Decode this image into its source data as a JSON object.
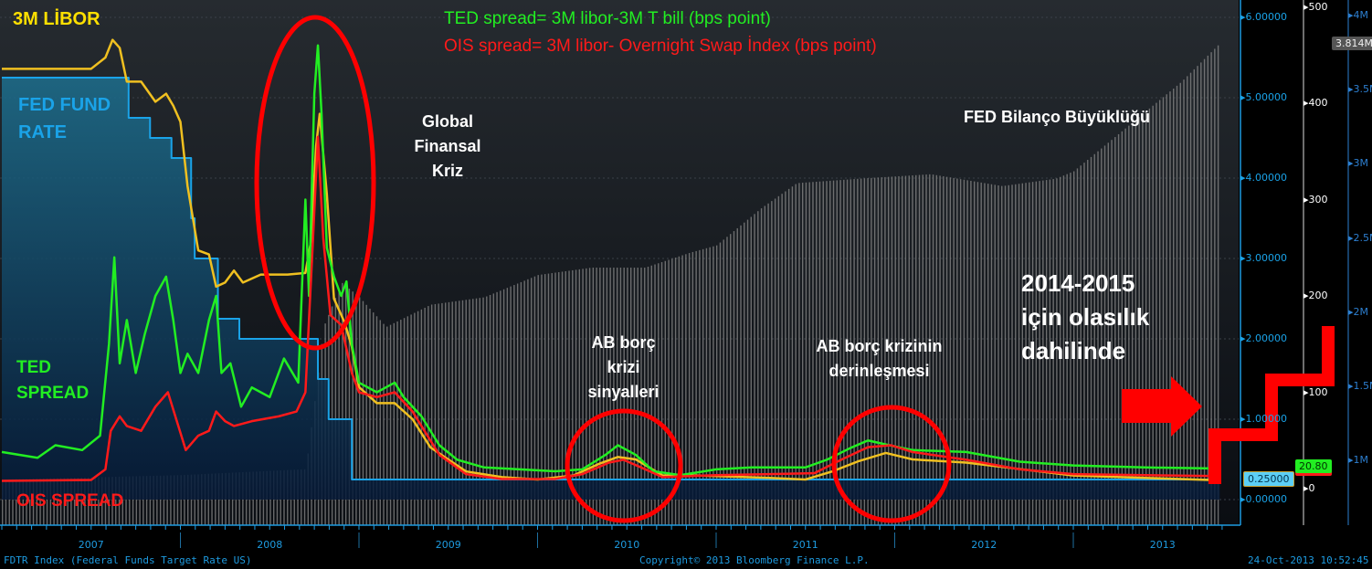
{
  "chart_data": {
    "type": "line",
    "title_lines": [
      "TED spread= 3M libor-3M T bill (bps point)",
      "OIS spread= 3M libor- Overnight Swap İndex (bps point)"
    ],
    "x_axis": {
      "type": "time",
      "range": [
        2007.0,
        2013.85
      ],
      "tick_labels": [
        "2007",
        "2008",
        "2009",
        "2010",
        "2011",
        "2012",
        "2013"
      ]
    },
    "y_axes": [
      {
        "name": "rate_pct",
        "side": "right",
        "range": [
          0,
          6.2
        ],
        "tick_labels": [
          "6.00000",
          "5.00000",
          "4.00000",
          "3.00000",
          "2.00000",
          "1.00000",
          "0.00000"
        ],
        "color": "#1aa3e8"
      },
      {
        "name": "spread_bps",
        "side": "right",
        "range": [
          -10,
          500
        ],
        "tick_labels": [
          "500",
          "400",
          "300",
          "200",
          "100",
          "0"
        ],
        "color": "#ffffff"
      },
      {
        "name": "balance_usd",
        "side": "right",
        "range": [
          0.7,
          4.05
        ],
        "tick_labels": [
          "4M",
          "3.5M",
          "3M",
          "2.5M",
          "2M",
          "1.5M",
          "1M"
        ],
        "color": "#2d7fd0"
      }
    ],
    "grid": true,
    "series": [
      {
        "name": "FED FUND RATE",
        "axis": "rate_pct",
        "color": "#1aa3e8",
        "step": true,
        "points": [
          [
            2007.0,
            5.25
          ],
          [
            2007.71,
            4.75
          ],
          [
            2007.83,
            4.5
          ],
          [
            2007.95,
            4.25
          ],
          [
            2008.06,
            3.5
          ],
          [
            2008.08,
            3.0
          ],
          [
            2008.21,
            2.25
          ],
          [
            2008.33,
            2.0
          ],
          [
            2008.77,
            1.5
          ],
          [
            2008.83,
            1.0
          ],
          [
            2008.96,
            0.25
          ],
          [
            2013.82,
            0.25
          ]
        ]
      },
      {
        "name": "3M LİBOR",
        "axis": "rate_pct",
        "color": "#f0c020",
        "points": [
          [
            2007.0,
            5.36
          ],
          [
            2007.5,
            5.36
          ],
          [
            2007.58,
            5.5
          ],
          [
            2007.62,
            5.72
          ],
          [
            2007.66,
            5.62
          ],
          [
            2007.7,
            5.2
          ],
          [
            2007.78,
            5.2
          ],
          [
            2007.86,
            4.95
          ],
          [
            2007.92,
            5.05
          ],
          [
            2007.96,
            4.9
          ],
          [
            2008.0,
            4.7
          ],
          [
            2008.04,
            3.9
          ],
          [
            2008.1,
            3.1
          ],
          [
            2008.16,
            3.05
          ],
          [
            2008.2,
            2.65
          ],
          [
            2008.25,
            2.7
          ],
          [
            2008.3,
            2.85
          ],
          [
            2008.35,
            2.7
          ],
          [
            2008.45,
            2.8
          ],
          [
            2008.6,
            2.8
          ],
          [
            2008.7,
            2.82
          ],
          [
            2008.73,
            3.2
          ],
          [
            2008.76,
            4.4
          ],
          [
            2008.78,
            4.8
          ],
          [
            2008.82,
            3.8
          ],
          [
            2008.86,
            2.5
          ],
          [
            2008.92,
            2.2
          ],
          [
            2008.96,
            1.9
          ],
          [
            2009.0,
            1.4
          ],
          [
            2009.1,
            1.2
          ],
          [
            2009.2,
            1.2
          ],
          [
            2009.3,
            1.0
          ],
          [
            2009.4,
            0.65
          ],
          [
            2009.5,
            0.5
          ],
          [
            2009.6,
            0.35
          ],
          [
            2009.8,
            0.28
          ],
          [
            2010.0,
            0.25
          ],
          [
            2010.2,
            0.3
          ],
          [
            2010.35,
            0.45
          ],
          [
            2010.45,
            0.53
          ],
          [
            2010.55,
            0.5
          ],
          [
            2010.7,
            0.3
          ],
          [
            2010.9,
            0.3
          ],
          [
            2011.3,
            0.27
          ],
          [
            2011.5,
            0.25
          ],
          [
            2011.65,
            0.35
          ],
          [
            2011.8,
            0.48
          ],
          [
            2011.95,
            0.58
          ],
          [
            2012.1,
            0.5
          ],
          [
            2012.4,
            0.46
          ],
          [
            2012.7,
            0.38
          ],
          [
            2013.0,
            0.3
          ],
          [
            2013.4,
            0.27
          ],
          [
            2013.82,
            0.24
          ]
        ]
      },
      {
        "name": "TED SPREAD",
        "axis": "spread_bps",
        "color": "#22ee22",
        "points": [
          [
            2007.0,
            38
          ],
          [
            2007.2,
            32
          ],
          [
            2007.3,
            45
          ],
          [
            2007.45,
            40
          ],
          [
            2007.55,
            55
          ],
          [
            2007.6,
            150
          ],
          [
            2007.63,
            240
          ],
          [
            2007.66,
            130
          ],
          [
            2007.7,
            175
          ],
          [
            2007.75,
            120
          ],
          [
            2007.8,
            160
          ],
          [
            2007.86,
            200
          ],
          [
            2007.92,
            220
          ],
          [
            2007.96,
            175
          ],
          [
            2008.0,
            120
          ],
          [
            2008.04,
            140
          ],
          [
            2008.1,
            120
          ],
          [
            2008.16,
            175
          ],
          [
            2008.2,
            200
          ],
          [
            2008.23,
            120
          ],
          [
            2008.28,
            130
          ],
          [
            2008.34,
            85
          ],
          [
            2008.4,
            105
          ],
          [
            2008.5,
            95
          ],
          [
            2008.58,
            135
          ],
          [
            2008.66,
            110
          ],
          [
            2008.7,
            300
          ],
          [
            2008.72,
            200
          ],
          [
            2008.75,
            410
          ],
          [
            2008.77,
            460
          ],
          [
            2008.79,
            390
          ],
          [
            2008.82,
            250
          ],
          [
            2008.86,
            220
          ],
          [
            2008.9,
            200
          ],
          [
            2008.93,
            215
          ],
          [
            2008.96,
            150
          ],
          [
            2009.0,
            110
          ],
          [
            2009.1,
            100
          ],
          [
            2009.2,
            110
          ],
          [
            2009.25,
            95
          ],
          [
            2009.35,
            75
          ],
          [
            2009.45,
            45
          ],
          [
            2009.55,
            30
          ],
          [
            2009.7,
            22
          ],
          [
            2009.9,
            20
          ],
          [
            2010.1,
            18
          ],
          [
            2010.25,
            20
          ],
          [
            2010.38,
            35
          ],
          [
            2010.45,
            45
          ],
          [
            2010.55,
            35
          ],
          [
            2010.65,
            18
          ],
          [
            2010.8,
            14
          ],
          [
            2011.0,
            20
          ],
          [
            2011.2,
            22
          ],
          [
            2011.5,
            22
          ],
          [
            2011.62,
            30
          ],
          [
            2011.75,
            42
          ],
          [
            2011.85,
            50
          ],
          [
            2011.97,
            45
          ],
          [
            2012.1,
            40
          ],
          [
            2012.4,
            38
          ],
          [
            2012.7,
            28
          ],
          [
            2013.0,
            24
          ],
          [
            2013.4,
            22
          ],
          [
            2013.82,
            20.8
          ]
        ]
      },
      {
        "name": "OIS SPREAD",
        "axis": "spread_bps",
        "color": "#ff1a1a",
        "points": [
          [
            2007.0,
            8
          ],
          [
            2007.5,
            9
          ],
          [
            2007.58,
            20
          ],
          [
            2007.61,
            60
          ],
          [
            2007.66,
            75
          ],
          [
            2007.7,
            65
          ],
          [
            2007.78,
            60
          ],
          [
            2007.86,
            85
          ],
          [
            2007.93,
            100
          ],
          [
            2007.98,
            70
          ],
          [
            2008.03,
            40
          ],
          [
            2008.1,
            55
          ],
          [
            2008.16,
            60
          ],
          [
            2008.2,
            80
          ],
          [
            2008.25,
            70
          ],
          [
            2008.3,
            65
          ],
          [
            2008.4,
            70
          ],
          [
            2008.55,
            75
          ],
          [
            2008.65,
            80
          ],
          [
            2008.7,
            100
          ],
          [
            2008.74,
            250
          ],
          [
            2008.77,
            365
          ],
          [
            2008.8,
            260
          ],
          [
            2008.84,
            180
          ],
          [
            2008.9,
            170
          ],
          [
            2008.96,
            120
          ],
          [
            2009.0,
            100
          ],
          [
            2009.1,
            95
          ],
          [
            2009.2,
            100
          ],
          [
            2009.3,
            80
          ],
          [
            2009.45,
            35
          ],
          [
            2009.6,
            15
          ],
          [
            2009.8,
            10
          ],
          [
            2010.1,
            10
          ],
          [
            2010.25,
            15
          ],
          [
            2010.4,
            27
          ],
          [
            2010.48,
            30
          ],
          [
            2010.58,
            22
          ],
          [
            2010.7,
            12
          ],
          [
            2011.0,
            14
          ],
          [
            2011.3,
            15
          ],
          [
            2011.55,
            16
          ],
          [
            2011.7,
            30
          ],
          [
            2011.85,
            43
          ],
          [
            2011.98,
            45
          ],
          [
            2012.1,
            38
          ],
          [
            2012.4,
            30
          ],
          [
            2012.7,
            20
          ],
          [
            2013.0,
            15
          ],
          [
            2013.4,
            14
          ],
          [
            2013.82,
            13
          ]
        ]
      },
      {
        "name": "FED Bilanço Büyüklüğü",
        "axis": "balance_usd",
        "color": "#8a8a8a",
        "type": "bar",
        "points": [
          [
            2007.0,
            0.87
          ],
          [
            2008.0,
            0.9
          ],
          [
            2008.7,
            0.94
          ],
          [
            2008.75,
            1.4
          ],
          [
            2008.8,
            1.9
          ],
          [
            2008.9,
            2.2
          ],
          [
            2009.0,
            2.1
          ],
          [
            2009.15,
            1.9
          ],
          [
            2009.4,
            2.05
          ],
          [
            2009.7,
            2.1
          ],
          [
            2010.0,
            2.25
          ],
          [
            2010.3,
            2.3
          ],
          [
            2010.6,
            2.3
          ],
          [
            2010.85,
            2.4
          ],
          [
            2011.0,
            2.45
          ],
          [
            2011.25,
            2.7
          ],
          [
            2011.45,
            2.87
          ],
          [
            2011.8,
            2.9
          ],
          [
            2012.2,
            2.93
          ],
          [
            2012.6,
            2.85
          ],
          [
            2012.9,
            2.9
          ],
          [
            2013.0,
            2.95
          ],
          [
            2013.3,
            3.25
          ],
          [
            2013.6,
            3.55
          ],
          [
            2013.82,
            3.814
          ]
        ]
      }
    ],
    "last_value_tags": [
      {
        "series": "FED FUND RATE",
        "text": "0.25000"
      },
      {
        "series": "TED SPREAD",
        "text": "20.80"
      },
      {
        "series": "FED Bilanço Büyüklüğü",
        "text": "3.814M"
      }
    ],
    "annotations": {
      "libor": "3M LİBOR",
      "fed_fund_1": "FED FUND",
      "fed_fund_2": "RATE",
      "ted_1": "TED",
      "ted_2": "SPREAD",
      "ois": "OIS SPREAD",
      "crisis": "Global\nFinansal\nKriz",
      "balance": "FED Bilanço Büyüklüğü",
      "eu_signal": "AB borç\nkrizi\nsinyalleri",
      "eu_deep": "AB borç krizinin\nderinleşmesi",
      "outlook": "2014-2015\niçin olasılık\ndahilinde"
    },
    "colors": {
      "accent": "#1e9be0",
      "highlight": "#ff0000"
    }
  },
  "footer": {
    "index": "FDTR Index (Federal Funds Target Rate US)",
    "copyright": "Copyright© 2013 Bloomberg Finance L.P.",
    "timestamp": "24-Oct-2013 10:52:45"
  }
}
